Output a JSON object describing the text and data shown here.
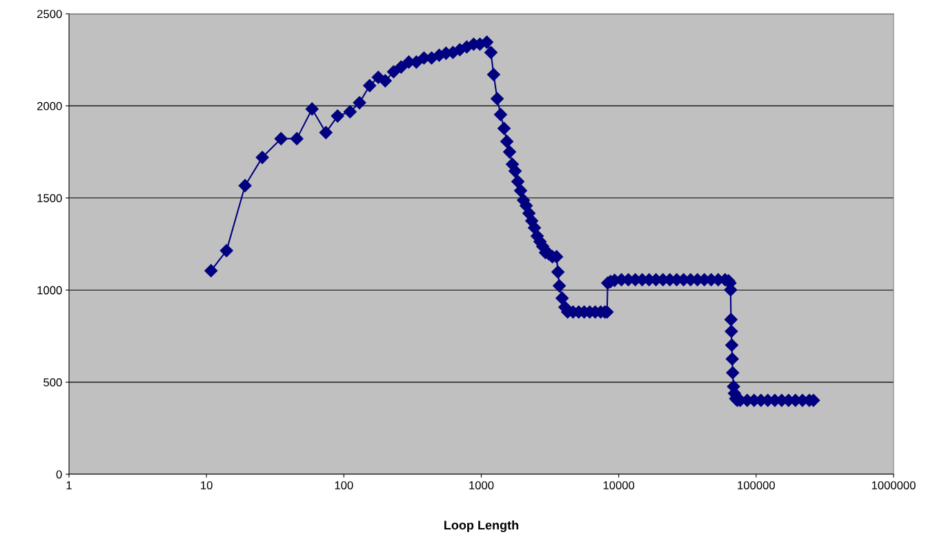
{
  "chart_data": {
    "type": "line",
    "xlabel": "Loop Length",
    "log": "x",
    "grid": "y",
    "marker": "diamond",
    "line_style": "solid",
    "xlim": [
      1,
      1000000
    ],
    "xticks": [
      1,
      10,
      100,
      1000,
      10000,
      100000,
      1000000
    ],
    "ylim": [
      0,
      2500
    ],
    "yticks": [
      0,
      500,
      1000,
      1500,
      2000,
      2500
    ],
    "series": [
      {
        "color": "#000080",
        "x": [
          10.8,
          14,
          19.1,
          25.5,
          34.9,
          45.5,
          58.7,
          74,
          90,
          111,
          130,
          154,
          178,
          200,
          230,
          261,
          297,
          337,
          383,
          435,
          494,
          554,
          622,
          698,
          784,
          880,
          977,
          1097,
          1175,
          1230,
          1306,
          1382,
          1465,
          1535,
          1607,
          1683,
          1763,
          1846,
          1933,
          2027,
          2122,
          2223,
          2328,
          2438,
          2553,
          2674,
          2800,
          2933,
          3107,
          3293,
          3530,
          3612,
          3698,
          3874,
          4058,
          4250,
          4656,
          5117,
          5610,
          6152,
          6745,
          7396,
          7925,
          8222,
          8318,
          8710,
          9333,
          10470,
          11750,
          13210,
          14830,
          16640,
          18670,
          20990,
          23550,
          26420,
          29650,
          33340,
          37410,
          41980,
          47100,
          52970,
          59430,
          63000,
          64500,
          65200,
          65600,
          66000,
          66500,
          67000,
          67500,
          68500,
          69500,
          71000,
          73000,
          76560,
          86100,
          96600,
          108400,
          121600,
          136800,
          153500,
          172200,
          193200,
          217300,
          243800,
          261200
        ],
        "values": [
          1105,
          1214,
          1567,
          1720,
          1822,
          1822,
          1983,
          1855,
          1945,
          1968,
          2017,
          2110,
          2155,
          2136,
          2185,
          2211,
          2238,
          2238,
          2260,
          2260,
          2275,
          2286,
          2290,
          2305,
          2320,
          2335,
          2335,
          2346,
          2290,
          2170,
          2039,
          1953,
          1878,
          1807,
          1750,
          1683,
          1646,
          1589,
          1540,
          1488,
          1458,
          1417,
          1376,
          1338,
          1293,
          1263,
          1237,
          1203,
          1196,
          1181,
          1181,
          1098,
          1023,
          956,
          907,
          881,
          881,
          881,
          881,
          881,
          881,
          881,
          881,
          881,
          1038,
          1046,
          1053,
          1056,
          1056,
          1056,
          1056,
          1056,
          1056,
          1056,
          1056,
          1056,
          1056,
          1056,
          1056,
          1056,
          1056,
          1056,
          1056,
          1050,
          1038,
          1001,
          840,
          776,
          701,
          626,
          551,
          476,
          439,
          410,
          401,
          401,
          401,
          401,
          401,
          401,
          401,
          401,
          401,
          401,
          401,
          401,
          401
        ]
      }
    ]
  }
}
